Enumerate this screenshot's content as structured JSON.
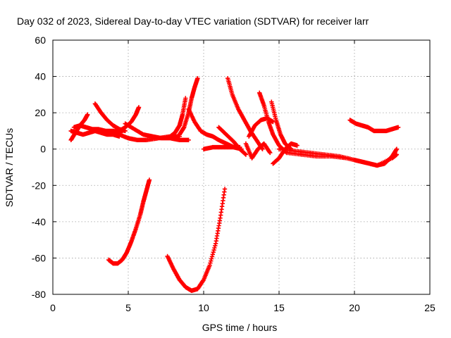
{
  "chart_data": {
    "type": "scatter",
    "title": "Day 032 of 2023, Sidereal Day-to-day VTEC variation (SDTVAR) for receiver larr",
    "xlabel": "GPS time / hours",
    "ylabel": "SDTVAR / TECUs",
    "xlim": [
      0,
      25
    ],
    "ylim": [
      -80,
      60
    ],
    "xticks": [
      "0",
      "5",
      "10",
      "15",
      "20",
      "25"
    ],
    "yticks": [
      "-80",
      "-60",
      "-40",
      "-20",
      "0",
      "20",
      "40",
      "60"
    ],
    "grid": true,
    "marker": "+",
    "color": "#ff0000",
    "series": [
      {
        "x": [
          1.2,
          1.6,
          2.0,
          2.4,
          2.8,
          3.2,
          3.6,
          4.0,
          4.4
        ],
        "y": [
          10,
          9,
          8,
          9,
          10,
          9,
          8,
          8,
          7
        ]
      },
      {
        "x": [
          1.2,
          1.5,
          1.8,
          2.1,
          2.3
        ],
        "y": [
          5,
          9,
          13,
          16,
          19
        ]
      },
      {
        "x": [
          1.4,
          1.8,
          2.2,
          2.6,
          3.0,
          3.5,
          4.0,
          4.5
        ],
        "y": [
          12,
          13,
          12,
          11,
          11,
          10,
          10,
          9
        ]
      },
      {
        "x": [
          2.8,
          3.2,
          3.6,
          4.0,
          4.4,
          4.8
        ],
        "y": [
          25,
          20,
          16,
          13,
          11,
          10
        ]
      },
      {
        "x": [
          3.2,
          3.8,
          4.4,
          5.0,
          5.6,
          6.2,
          7.0,
          7.8,
          8.4
        ],
        "y": [
          10,
          9,
          8,
          6,
          5,
          5,
          6,
          7,
          7
        ]
      },
      {
        "x": [
          4.4,
          4.8,
          5.2,
          5.5,
          5.7
        ],
        "y": [
          10,
          12,
          15,
          19,
          23
        ]
      },
      {
        "x": [
          4.8,
          5.4,
          6.0,
          6.6,
          7.2,
          7.8,
          8.4,
          9.0
        ],
        "y": [
          14,
          11,
          8,
          7,
          6,
          6,
          5,
          5
        ]
      },
      {
        "x": [
          3.7,
          4.0,
          4.3,
          4.6,
          4.9,
          5.2,
          5.5,
          5.8,
          6.0,
          6.2,
          6.4
        ],
        "y": [
          -61,
          -63,
          -63,
          -61,
          -57,
          -51,
          -44,
          -36,
          -29,
          -23,
          -17
        ]
      },
      {
        "x": [
          7.6,
          8.0,
          8.4,
          8.8,
          9.2,
          9.6,
          10.0,
          10.4,
          10.8,
          11.1,
          11.4
        ],
        "y": [
          -59,
          -66,
          -72,
          -76,
          -78,
          -77,
          -72,
          -64,
          -52,
          -38,
          -22
        ]
      },
      {
        "x": [
          7.8,
          8.1,
          8.4,
          8.6,
          8.8
        ],
        "y": [
          7,
          9,
          13,
          19,
          28
        ]
      },
      {
        "x": [
          8.4,
          8.7,
          9.0,
          9.2,
          9.4,
          9.6
        ],
        "y": [
          8,
          12,
          20,
          28,
          34,
          39
        ]
      },
      {
        "x": [
          9.0,
          9.4,
          9.8,
          10.2,
          10.6,
          11.0,
          11.5,
          12.0,
          12.5
        ],
        "y": [
          22,
          15,
          10,
          8,
          7,
          5,
          3,
          1,
          0
        ]
      },
      {
        "x": [
          10.0,
          10.6,
          11.2,
          11.8,
          12.4
        ],
        "y": [
          0,
          1,
          1,
          1,
          1
        ]
      },
      {
        "x": [
          11.6,
          11.9,
          12.3,
          12.7,
          13.1,
          13.5,
          13.9
        ],
        "y": [
          39,
          30,
          22,
          16,
          10,
          5,
          0
        ]
      },
      {
        "x": [
          11.0,
          11.5,
          12.0,
          12.4,
          12.8
        ],
        "y": [
          12,
          8,
          4,
          0,
          -3
        ]
      },
      {
        "x": [
          12.8,
          13.2,
          13.6,
          14.0,
          14.4
        ],
        "y": [
          3,
          -5,
          0,
          3,
          -2
        ]
      },
      {
        "x": [
          13.0,
          13.4,
          13.8,
          14.2,
          14.6
        ],
        "y": [
          7,
          13,
          16,
          17,
          15
        ]
      },
      {
        "x": [
          13.7,
          14.0,
          14.3,
          14.6,
          15.0,
          15.5
        ],
        "y": [
          31,
          24,
          15,
          8,
          2,
          -2
        ]
      },
      {
        "x": [
          14.5,
          14.8,
          15.1,
          15.4,
          15.8
        ],
        "y": [
          26,
          16,
          8,
          3,
          0
        ]
      },
      {
        "x": [
          14.6,
          15.0,
          15.4,
          15.8,
          16.2
        ],
        "y": [
          -8,
          -5,
          0,
          3,
          2
        ]
      },
      {
        "x": [
          15.0,
          16.0,
          17.0,
          18.0,
          19.0,
          20.0,
          20.5,
          21.0,
          21.5,
          22.0,
          22.5,
          22.8
        ],
        "y": [
          0,
          -1,
          -2,
          -3,
          -4,
          -6,
          -7,
          -8,
          -9,
          -8,
          -4,
          0
        ]
      },
      {
        "x": [
          15.5,
          16.5,
          17.5,
          18.5,
          19.5,
          20.5,
          21.5,
          22.5,
          22.8
        ],
        "y": [
          -2,
          -3,
          -4,
          -4,
          -5,
          -7,
          -9,
          -5,
          -3
        ]
      },
      {
        "x": [
          19.7,
          20.1,
          20.5,
          20.9,
          21.3,
          21.7,
          22.1,
          22.5,
          22.9
        ],
        "y": [
          16,
          14,
          13,
          12,
          10,
          10,
          10,
          11,
          12
        ]
      }
    ]
  }
}
